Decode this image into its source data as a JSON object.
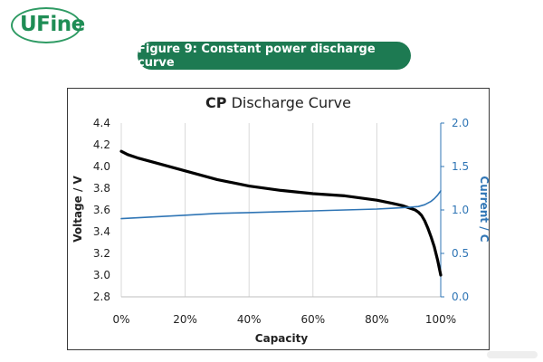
{
  "logo": {
    "text": "UFine"
  },
  "banner": {
    "text": "Figure 9: Constant power discharge curve"
  },
  "chart_data": {
    "type": "line",
    "title_bold": "CP",
    "title_rest": "Discharge Curve",
    "xlabel": "Capacity",
    "ylabel": "Voltage / V",
    "y2label": "Current / C",
    "xlim": [
      0,
      100
    ],
    "ylim": [
      2.8,
      4.4
    ],
    "y2lim": [
      0.0,
      2.0
    ],
    "x_ticks": [
      "0%",
      "20%",
      "40%",
      "60%",
      "80%",
      "100%"
    ],
    "y_ticks": [
      "2.8",
      "3.0",
      "3.2",
      "3.4",
      "3.6",
      "3.8",
      "4.0",
      "4.2",
      "4.4"
    ],
    "y2_ticks": [
      "0.0",
      "0.5",
      "1.0",
      "1.5",
      "2.0"
    ],
    "grid": "vertical",
    "series": [
      {
        "axis": "left",
        "color": "#000000",
        "x": [
          0,
          2,
          5,
          10,
          20,
          30,
          40,
          50,
          60,
          70,
          80,
          85,
          88,
          90,
          92,
          93,
          94,
          95,
          96,
          97,
          98,
          99,
          100
        ],
        "values": [
          4.14,
          4.11,
          4.08,
          4.04,
          3.96,
          3.88,
          3.82,
          3.78,
          3.75,
          3.73,
          3.69,
          3.66,
          3.64,
          3.62,
          3.6,
          3.58,
          3.55,
          3.5,
          3.43,
          3.35,
          3.26,
          3.14,
          3.0
        ]
      },
      {
        "axis": "right",
        "color": "#2f75b5",
        "x": [
          0,
          10,
          20,
          30,
          40,
          50,
          60,
          70,
          80,
          85,
          90,
          93,
          95,
          97,
          98,
          99,
          100
        ],
        "values": [
          0.9,
          0.92,
          0.94,
          0.96,
          0.97,
          0.98,
          0.99,
          1.0,
          1.01,
          1.02,
          1.03,
          1.04,
          1.06,
          1.1,
          1.13,
          1.17,
          1.22
        ]
      }
    ]
  }
}
